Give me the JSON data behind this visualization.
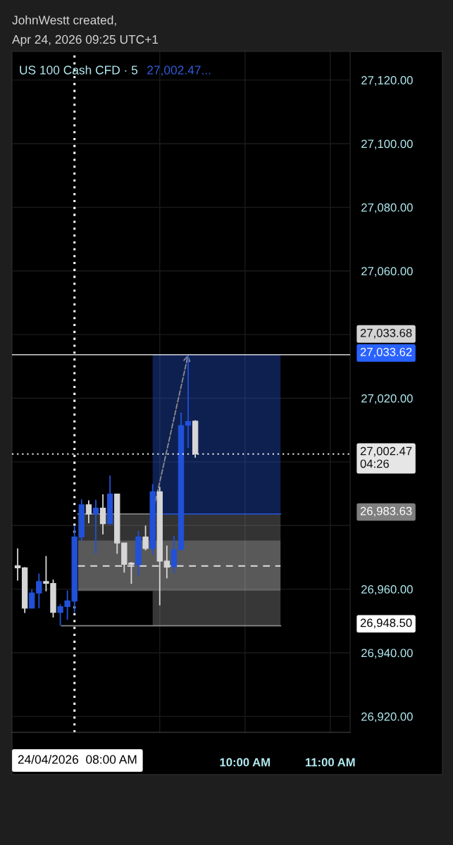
{
  "chart_data": {
    "type": "candlestick",
    "title": "US 100 Cash CFD · 5",
    "subtitle": "27,002.47...",
    "annotations": [
      "JohnWestt created,",
      "Apr 24, 2026 09:25 UTC+1",
      "27,033.62",
      "26,983.63",
      "26,948.50"
    ],
    "x": [
      "2026-04-24T07:20",
      "2026-04-24T07:25",
      "2026-04-24T07:30",
      "2026-04-24T07:35",
      "2026-04-24T07:40",
      "2026-04-24T07:45",
      "2026-04-24T07:50",
      "2026-04-24T07:55",
      "2026-04-24T08:00",
      "2026-04-24T08:05",
      "2026-04-24T08:10",
      "2026-04-24T08:15",
      "2026-04-24T08:20",
      "2026-04-24T08:25",
      "2026-04-24T08:30",
      "2026-04-24T08:35",
      "2026-04-24T08:40",
      "2026-04-24T08:45",
      "2026-04-24T08:50",
      "2026-04-24T08:55",
      "2026-04-24T09:00",
      "2026-04-24T09:05",
      "2026-04-24T09:10",
      "2026-04-24T09:15",
      "2026-04-24T09:20",
      "2026-04-24T09:25"
    ],
    "ohlc": [
      [
        26967.4,
        26972.8,
        26962.7,
        26966.7
      ],
      [
        26966.7,
        26966.9,
        26952.5,
        26954.0
      ],
      [
        26954.0,
        26959.9,
        26954.0,
        26958.8
      ],
      [
        26958.8,
        26964.9,
        26954.0,
        26962.4
      ],
      [
        26962.4,
        26970.4,
        26959.3,
        26961.8
      ],
      [
        26961.8,
        26963.0,
        26951.1,
        26952.7
      ],
      [
        26952.7,
        26955.3,
        26948.5,
        26954.5
      ],
      [
        26954.5,
        26959.6,
        26950.4,
        26956.3
      ],
      [
        26956.3,
        26980.0,
        26952.7,
        26976.4
      ],
      [
        26976.4,
        26988.2,
        26975.2,
        26986.5
      ],
      [
        26986.5,
        26987.9,
        26980.7,
        26983.6
      ],
      [
        26983.6,
        26988.1,
        26971.1,
        26985.5
      ],
      [
        26985.5,
        26989.8,
        26977.2,
        26980.6
      ],
      [
        26980.6,
        26995.7,
        26980.3,
        26989.9
      ],
      [
        26989.9,
        26989.9,
        26971.1,
        26974.5
      ],
      [
        26974.5,
        26974.5,
        26965.2,
        26967.8
      ],
      [
        26968.2,
        26968.5,
        26961.7,
        26967.8
      ],
      [
        26967.7,
        26978.3,
        26964.3,
        26976.4
      ],
      [
        26976.4,
        26980.0,
        26972.2,
        26972.8
      ],
      [
        26972.8,
        26993.0,
        26970.8,
        26990.6
      ],
      [
        26990.6,
        26992.1,
        26954.9,
        26968.8
      ],
      [
        26968.8,
        26973.7,
        26963.4,
        26966.9
      ],
      [
        26967.1,
        26976.8,
        26965.0,
        26972.4
      ],
      [
        26972.4,
        27015.5,
        26972.4,
        27011.4
      ],
      [
        27011.5,
        27033.7,
        27004.4,
        27012.7
      ],
      [
        27012.8,
        27013.1,
        27001.3,
        27002.47
      ]
    ],
    "colors": [
      "#d6d6d6",
      "#d6d6d6",
      "#2151d9",
      "#2151d9",
      "#d6d6d6",
      "#d6d6d6",
      "#2151d9",
      "#2151d9",
      "#2151d9",
      "#2151d9",
      "#d6d6d6",
      "#2151d9",
      "#d6d6d6",
      "#2151d9",
      "#d6d6d6",
      "#d6d6d6",
      "#d6d6d6",
      "#2151d9",
      "#d6d6d6",
      "#2151d9",
      "#d6d6d6",
      "#d6d6d6",
      "#2151d9",
      "#2151d9",
      "#2151d9",
      "#d6d6d6"
    ],
    "series": [
      {
        "type": "line",
        "x": [
          "2026-04-24T08:55",
          "2026-04-24T08:57",
          "2026-04-24T10:25"
        ],
        "values": [
          null,
          26983.63,
          26983.63
        ],
        "lower": [
          26983.63,
          26983.63,
          26983.63
        ],
        "upper": [
          27033.62,
          27033.62,
          27033.62
        ],
        "color": "#2450c8"
      },
      {
        "type": "line",
        "x": [
          "2026-04-24T08:02:30",
          "2026-04-24T08:52:30",
          "2026-04-24T10:25"
        ],
        "values": [
          26983.63,
          26983.63,
          null
        ],
        "lower": [
          26975.3,
          26975.3,
          26975.3
        ],
        "upper": [
          26983.63,
          26983.63,
          26983.63
        ],
        "color": "#808080"
      },
      {
        "type": "line",
        "x": [
          "2026-04-24T08:02:30",
          "2026-04-24T10:25"
        ],
        "values": [
          26967.3,
          26967.3
        ],
        "lower": [
          26959.4,
          26959.4
        ],
        "upper": [
          26975.3,
          26975.3
        ],
        "color": "#dedede",
        "line_style": "dashed"
      },
      {
        "type": "line",
        "x": [
          "2026-04-24T07:51",
          "2026-04-24T08:55",
          "2026-04-24T10:25"
        ],
        "values": [
          26948.5,
          26948.5,
          26948.5
        ],
        "lower": [
          null,
          26948.5,
          26948.5
        ],
        "upper": [
          null,
          26959.4,
          26959.4
        ],
        "color": "#8a8a8a"
      }
    ],
    "ref_lines": [
      {
        "axis": "y",
        "value": 27033.68,
        "label": "27,033.68",
        "color": "#d4d4d4",
        "line_style": "solid"
      },
      {
        "axis": "y",
        "value": 27002.47,
        "label": "27,002.47\n04:26",
        "color": "#e6e6e6",
        "line_style": "dotted"
      },
      {
        "axis": "x",
        "value": "2026-04-24T08:00",
        "label": "24/04/2026  08:00 AM",
        "color": "#ffffff",
        "line_style": "dotted"
      }
    ],
    "xlim": [
      "2026-04-24T07:16",
      "2026-04-24T11:14"
    ],
    "xticks": [
      {
        "value": "2026-04-24T09:00",
        "label": null
      },
      {
        "value": "2026-04-24T10:00",
        "label": "10:00 AM"
      },
      {
        "value": "2026-04-24T11:00",
        "label": "11:00 AM"
      }
    ],
    "ylim": [
      26915,
      27129
    ],
    "yticks": [
      {
        "value": 26920,
        "label": "26,920.00"
      },
      {
        "value": 26940,
        "label": "26,940.00"
      },
      {
        "value": 26960,
        "label": "26,960.00"
      },
      {
        "value": 26980,
        "label": null
      },
      {
        "value": 27000,
        "label": null
      },
      {
        "value": 27020,
        "label": "27,020.00"
      },
      {
        "value": 27040,
        "label": null
      },
      {
        "value": 27060,
        "label": "27,060.00"
      },
      {
        "value": 27080,
        "label": "27,080.00"
      },
      {
        "value": 27100,
        "label": "27,100.00"
      },
      {
        "value": 27120,
        "label": "27,120.00"
      }
    ],
    "grid": true
  }
}
